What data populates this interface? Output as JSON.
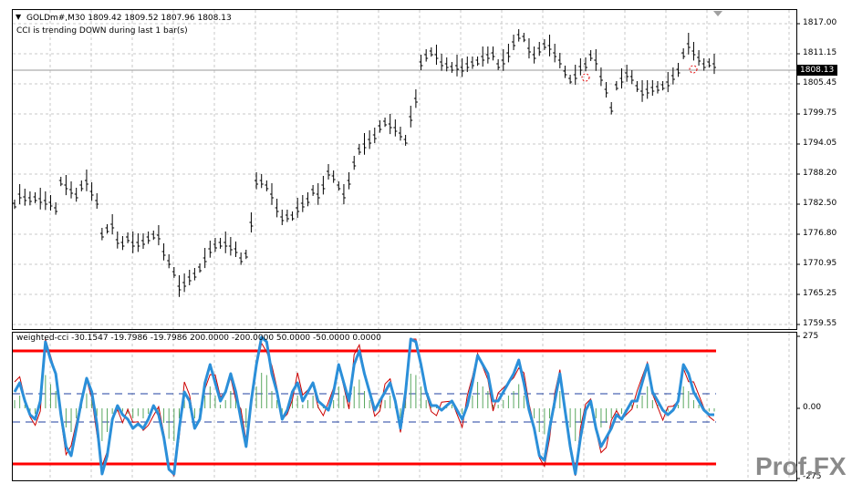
{
  "main_chart": {
    "symbol_title": "GOLDm#,M30  1809.42 1809.52 1807.96 1808.13",
    "message": "CCI is trending DOWN during last 1 bar(s)",
    "price_axis": [
      "1817.00",
      "1811.15",
      "1805.45",
      "1799.75",
      "1794.05",
      "1788.20",
      "1782.50",
      "1776.80",
      "1770.95",
      "1765.25",
      "1759.55"
    ],
    "current_price_tag": "1808.13",
    "dropdown_icon": "triangle-down-icon"
  },
  "sub_chart": {
    "title": "weighted-cci -30.1547 -19.7986 -19.7986 200.0000 -200.0000 50.0000 -50.0000 0.0000",
    "axis": [
      "275",
      "0.00",
      "-275"
    ]
  },
  "logo": {
    "text": "Prof.FX"
  },
  "colors": {
    "up_down_bars": "#000000",
    "cci_thick": "#2b8fd9",
    "cci_thin": "#cc0000",
    "levels": "#ff0000",
    "dashed_levels": "#1f3fa0",
    "histogram": "#5aa860",
    "grid": "#c8c8c8"
  }
}
